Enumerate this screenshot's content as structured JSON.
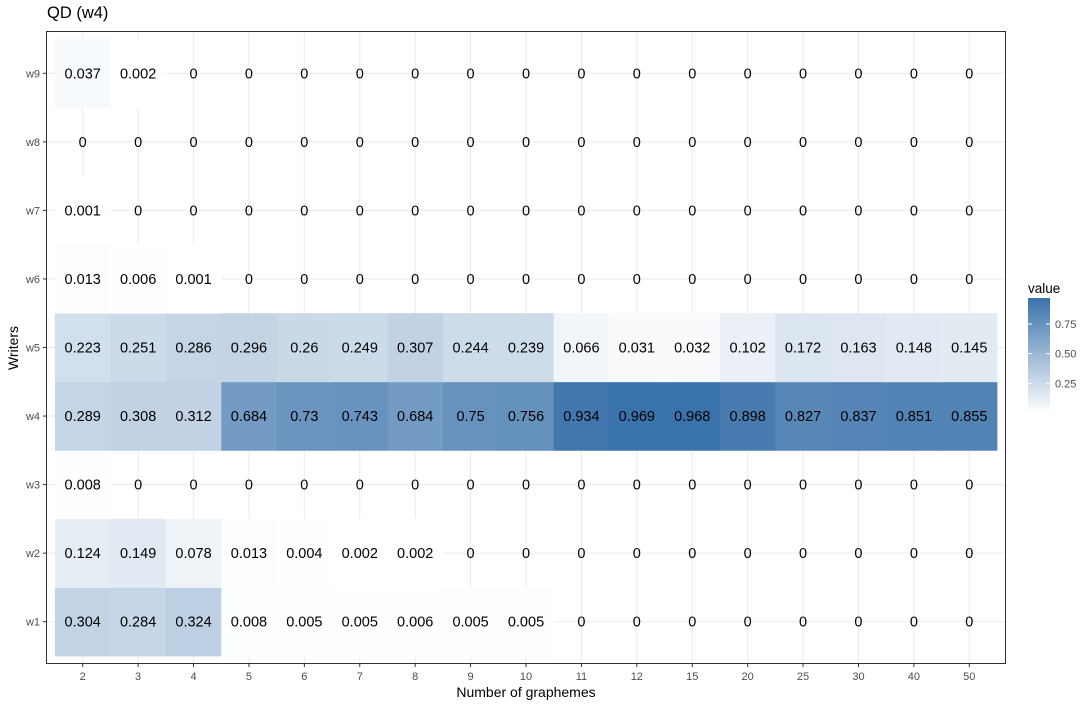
{
  "chart_data": {
    "type": "heatmap",
    "title": "QD (w4)",
    "xlabel": "Number of graphemes",
    "ylabel": "Writers",
    "x": [
      "2",
      "3",
      "4",
      "5",
      "6",
      "7",
      "8",
      "9",
      "10",
      "11",
      "12",
      "15",
      "20",
      "25",
      "30",
      "40",
      "50"
    ],
    "y": [
      "w1",
      "w2",
      "w3",
      "w4",
      "w5",
      "w6",
      "w7",
      "w8",
      "w9"
    ],
    "values": {
      "w9": [
        "0.037",
        "0.002",
        "0",
        "0",
        "0",
        "0",
        "0",
        "0",
        "0",
        "0",
        "0",
        "0",
        "0",
        "0",
        "0",
        "0",
        "0"
      ],
      "w8": [
        "0",
        "0",
        "0",
        "0",
        "0",
        "0",
        "0",
        "0",
        "0",
        "0",
        "0",
        "0",
        "0",
        "0",
        "0",
        "0",
        "0"
      ],
      "w7": [
        "0.001",
        "0",
        "0",
        "0",
        "0",
        "0",
        "0",
        "0",
        "0",
        "0",
        "0",
        "0",
        "0",
        "0",
        "0",
        "0",
        "0"
      ],
      "w6": [
        "0.013",
        "0.006",
        "0.001",
        "0",
        "0",
        "0",
        "0",
        "0",
        "0",
        "0",
        "0",
        "0",
        "0",
        "0",
        "0",
        "0",
        "0"
      ],
      "w5": [
        "0.223",
        "0.251",
        "0.286",
        "0.296",
        "0.26",
        "0.249",
        "0.307",
        "0.244",
        "0.239",
        "0.066",
        "0.031",
        "0.032",
        "0.102",
        "0.172",
        "0.163",
        "0.148",
        "0.145"
      ],
      "w4": [
        "0.289",
        "0.308",
        "0.312",
        "0.684",
        "0.73",
        "0.743",
        "0.684",
        "0.75",
        "0.756",
        "0.934",
        "0.969",
        "0.968",
        "0.898",
        "0.827",
        "0.837",
        "0.851",
        "0.855"
      ],
      "w3": [
        "0.008",
        "0",
        "0",
        "0",
        "0",
        "0",
        "0",
        "0",
        "0",
        "0",
        "0",
        "0",
        "0",
        "0",
        "0",
        "0",
        "0"
      ],
      "w2": [
        "0.124",
        "0.149",
        "0.078",
        "0.013",
        "0.004",
        "0.002",
        "0.002",
        "0",
        "0",
        "0",
        "0",
        "0",
        "0",
        "0",
        "0",
        "0",
        "0"
      ],
      "w1": [
        "0.304",
        "0.284",
        "0.324",
        "0.008",
        "0.005",
        "0.005",
        "0.006",
        "0.005",
        "0.005",
        "0",
        "0",
        "0",
        "0",
        "0",
        "0",
        "0",
        "0"
      ]
    },
    "legend": {
      "title": "value",
      "ticks": [
        "0.25",
        "0.50",
        "0.75"
      ],
      "tick_values": [
        0.25,
        0.5,
        0.75
      ],
      "range": [
        0,
        0.969
      ],
      "low_color": "#ffffff",
      "high_color": "#3a72ab",
      "placement": "right"
    },
    "grid": true,
    "background": "#ffffff",
    "gridline_color": "#ebebeb",
    "panel_border_color": "#333333"
  }
}
